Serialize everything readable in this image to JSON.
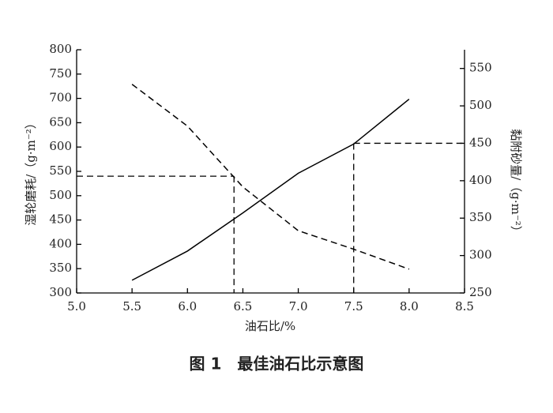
{
  "chart_data": {
    "type": "line",
    "title": "图 1　最佳油石比示意图",
    "x_label": "油石比/%",
    "y_label": "湿轮磨耗/（g·m⁻²）",
    "y2_label": "黏附砂量/（g·m⁻²）",
    "x": [
      5.5,
      6.0,
      6.5,
      7.0,
      7.5,
      8.0
    ],
    "series": [
      {
        "color": "#000000",
        "dash": true,
        "axis": "y",
        "values": [
          729,
          643,
          518,
          428,
          390,
          349
        ]
      },
      {
        "color": "#000000",
        "dash": false,
        "axis": "y2",
        "values": [
          267,
          306,
          357,
          410,
          449,
          509
        ]
      }
    ],
    "xlim": [
      5.0,
      8.5
    ],
    "xticks": [
      {
        "value": 5.0,
        "label": "5.0"
      },
      5.5,
      {
        "value": 6.0,
        "label": "6.0"
      },
      6.5,
      {
        "value": 7.0,
        "label": "7.0"
      },
      7.5,
      {
        "value": 8.0,
        "label": "8.0"
      },
      8.5
    ],
    "ylim": [
      300,
      800
    ],
    "yticks": [
      300,
      350,
      400,
      450,
      500,
      550,
      600,
      650,
      700,
      750,
      800
    ],
    "y2lim": [
      250,
      575
    ],
    "y2ticks": [
      250,
      300,
      350,
      400,
      450,
      500,
      550
    ],
    "reference_lines": [
      {
        "x": 6.42,
        "y": 540,
        "axis": "y"
      },
      {
        "x": 7.5,
        "y": 450,
        "axis": "y2"
      }
    ]
  }
}
